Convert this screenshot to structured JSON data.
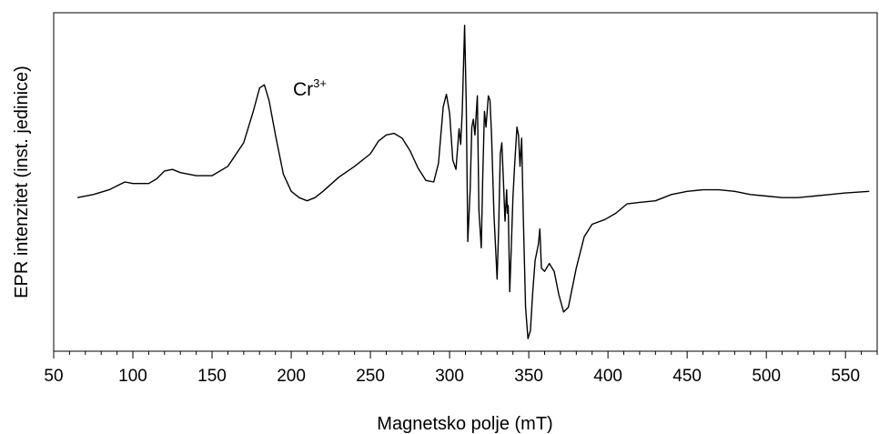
{
  "chart_data": {
    "type": "line",
    "title": "",
    "xlabel": "Magnetsko polje (mT)",
    "ylabel": "EPR intenzitet (inst. jedinice)",
    "xlim": [
      50,
      570
    ],
    "ylim": [
      -1.08,
      1.08
    ],
    "xticks": [
      50,
      100,
      150,
      200,
      250,
      300,
      350,
      400,
      450,
      500,
      550
    ],
    "x_minor_step": 10,
    "y_ticks_shown": false,
    "grid": false,
    "legend": "none",
    "line_color": "#000000",
    "annotations": [
      {
        "base": "Cr",
        "sup": "3+",
        "x": 185,
        "y": 0.62
      }
    ],
    "series": [
      {
        "points": [
          [
            65,
            -0.1
          ],
          [
            75,
            -0.08
          ],
          [
            85,
            -0.05
          ],
          [
            95,
            0.0
          ],
          [
            100,
            -0.01
          ],
          [
            110,
            -0.01
          ],
          [
            115,
            0.02
          ],
          [
            120,
            0.07
          ],
          [
            125,
            0.08
          ],
          [
            130,
            0.06
          ],
          [
            140,
            0.04
          ],
          [
            150,
            0.04
          ],
          [
            160,
            0.1
          ],
          [
            170,
            0.25
          ],
          [
            176,
            0.45
          ],
          [
            180,
            0.6
          ],
          [
            183,
            0.62
          ],
          [
            186,
            0.52
          ],
          [
            190,
            0.3
          ],
          [
            195,
            0.05
          ],
          [
            200,
            -0.06
          ],
          [
            205,
            -0.1
          ],
          [
            210,
            -0.12
          ],
          [
            215,
            -0.1
          ],
          [
            220,
            -0.06
          ],
          [
            230,
            0.03
          ],
          [
            240,
            0.1
          ],
          [
            250,
            0.18
          ],
          [
            255,
            0.26
          ],
          [
            260,
            0.3
          ],
          [
            265,
            0.31
          ],
          [
            270,
            0.28
          ],
          [
            275,
            0.2
          ],
          [
            280,
            0.09
          ],
          [
            285,
            0.01
          ],
          [
            290,
            0.0
          ],
          [
            293,
            0.12
          ],
          [
            296,
            0.48
          ],
          [
            298,
            0.56
          ],
          [
            300,
            0.44
          ],
          [
            302,
            0.14
          ],
          [
            304,
            0.08
          ],
          [
            306,
            0.34
          ],
          [
            307,
            0.24
          ],
          [
            308,
            0.45
          ],
          [
            309.5,
            1.0
          ],
          [
            310.5,
            0.5
          ],
          [
            311.5,
            -0.38
          ],
          [
            313,
            -0.05
          ],
          [
            314,
            0.35
          ],
          [
            315,
            0.4
          ],
          [
            316,
            0.3
          ],
          [
            317.5,
            0.55
          ],
          [
            318.5,
            -0.18
          ],
          [
            320,
            -0.42
          ],
          [
            321,
            0.05
          ],
          [
            322,
            0.45
          ],
          [
            323,
            0.35
          ],
          [
            324.5,
            0.55
          ],
          [
            325.5,
            0.52
          ],
          [
            326.5,
            0.3
          ],
          [
            328,
            -0.2
          ],
          [
            330,
            -0.62
          ],
          [
            331,
            -0.3
          ],
          [
            332,
            0.18
          ],
          [
            333,
            0.25
          ],
          [
            334,
            0.0
          ],
          [
            335,
            -0.25
          ],
          [
            336,
            -0.05
          ],
          [
            336.5,
            -0.2
          ],
          [
            337,
            -0.15
          ],
          [
            338,
            -0.7
          ],
          [
            339,
            -0.4
          ],
          [
            340,
            -0.1
          ],
          [
            341,
            0.1
          ],
          [
            342.5,
            0.35
          ],
          [
            343.5,
            0.3
          ],
          [
            344.5,
            0.1
          ],
          [
            345.5,
            0.28
          ],
          [
            346.5,
            -0.2
          ],
          [
            348,
            -0.8
          ],
          [
            349.5,
            -1.0
          ],
          [
            351,
            -0.95
          ],
          [
            352.5,
            -0.7
          ],
          [
            354,
            -0.5
          ],
          [
            356,
            -0.4
          ],
          [
            357,
            -0.3
          ],
          [
            358,
            -0.55
          ],
          [
            360,
            -0.57
          ],
          [
            363,
            -0.52
          ],
          [
            366,
            -0.57
          ],
          [
            369,
            -0.72
          ],
          [
            372,
            -0.83
          ],
          [
            375,
            -0.8
          ],
          [
            380,
            -0.55
          ],
          [
            385,
            -0.35
          ],
          [
            390,
            -0.27
          ],
          [
            398,
            -0.24
          ],
          [
            405,
            -0.2
          ],
          [
            412,
            -0.14
          ],
          [
            420,
            -0.13
          ],
          [
            430,
            -0.12
          ],
          [
            440,
            -0.08
          ],
          [
            450,
            -0.06
          ],
          [
            460,
            -0.05
          ],
          [
            470,
            -0.05
          ],
          [
            480,
            -0.06
          ],
          [
            490,
            -0.08
          ],
          [
            500,
            -0.09
          ],
          [
            510,
            -0.1
          ],
          [
            520,
            -0.1
          ],
          [
            530,
            -0.09
          ],
          [
            540,
            -0.08
          ],
          [
            550,
            -0.07
          ],
          [
            565,
            -0.06
          ]
        ]
      }
    ]
  }
}
